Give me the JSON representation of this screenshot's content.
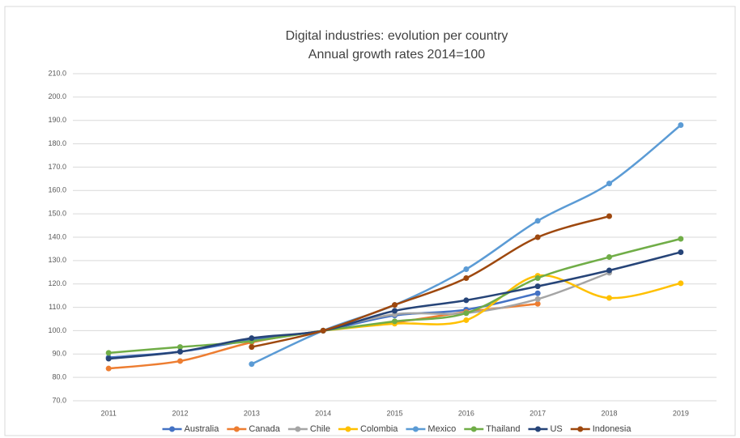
{
  "chart_data": {
    "type": "line",
    "title": "Digital industries: evolution per country",
    "subtitle": "Annual growth rates 2014=100",
    "categories": [
      "2011",
      "2012",
      "2013",
      "2014",
      "2015",
      "2016",
      "2017",
      "2018",
      "2019"
    ],
    "ylim": [
      70,
      210
    ],
    "yticks": [
      {
        "value": 70,
        "label": "70.0"
      },
      {
        "value": 80,
        "label": "80.0"
      },
      {
        "value": 90,
        "label": "90.0"
      },
      {
        "value": 100,
        "label": "100.0"
      },
      {
        "value": 110,
        "label": "110.0"
      },
      {
        "value": 120,
        "label": "120.0"
      },
      {
        "value": 130,
        "label": "130.0"
      },
      {
        "value": 140,
        "label": "140.0"
      },
      {
        "value": 150,
        "label": "150.0"
      },
      {
        "value": 160,
        "label": "160.0"
      },
      {
        "value": 170,
        "label": "170.0"
      },
      {
        "value": 180,
        "label": "180.0"
      },
      {
        "value": 190,
        "label": "190.0"
      },
      {
        "value": 200,
        "label": "200.0"
      },
      {
        "value": 210,
        "label": "210.0"
      }
    ],
    "grid": true,
    "legend": "bottom",
    "series": [
      {
        "name": "Australia",
        "color": "#4472c4",
        "values": [
          88.5,
          91,
          96,
          100,
          106.5,
          109,
          116,
          null,
          null
        ]
      },
      {
        "name": "Canada",
        "color": "#ed7d31",
        "values": [
          83.8,
          87,
          95,
          100,
          103.5,
          108,
          111.5,
          null,
          null
        ]
      },
      {
        "name": "Chile",
        "color": "#a5a5a5",
        "values": [
          null,
          null,
          null,
          100,
          107,
          107.5,
          113.5,
          124.8,
          null
        ]
      },
      {
        "name": "Colombia",
        "color": "#ffc000",
        "values": [
          null,
          null,
          null,
          100,
          103,
          104.5,
          123.5,
          114,
          120.3
        ]
      },
      {
        "name": "Mexico",
        "color": "#5b9bd5",
        "values": [
          null,
          null,
          85.7,
          100,
          111,
          126.3,
          147,
          163,
          188
        ]
      },
      {
        "name": "Thailand",
        "color": "#70ad47",
        "values": [
          90.5,
          93,
          95.5,
          100,
          104,
          107.5,
          122.5,
          131.5,
          139.3
        ]
      },
      {
        "name": "US",
        "color": "#264478",
        "values": [
          88,
          91,
          96.8,
          100,
          108.5,
          113,
          119,
          125.8,
          133.6
        ]
      },
      {
        "name": "Indonesia",
        "color": "#9e480e",
        "values": [
          null,
          null,
          93,
          100,
          111,
          122.5,
          140,
          149,
          null
        ]
      }
    ]
  }
}
